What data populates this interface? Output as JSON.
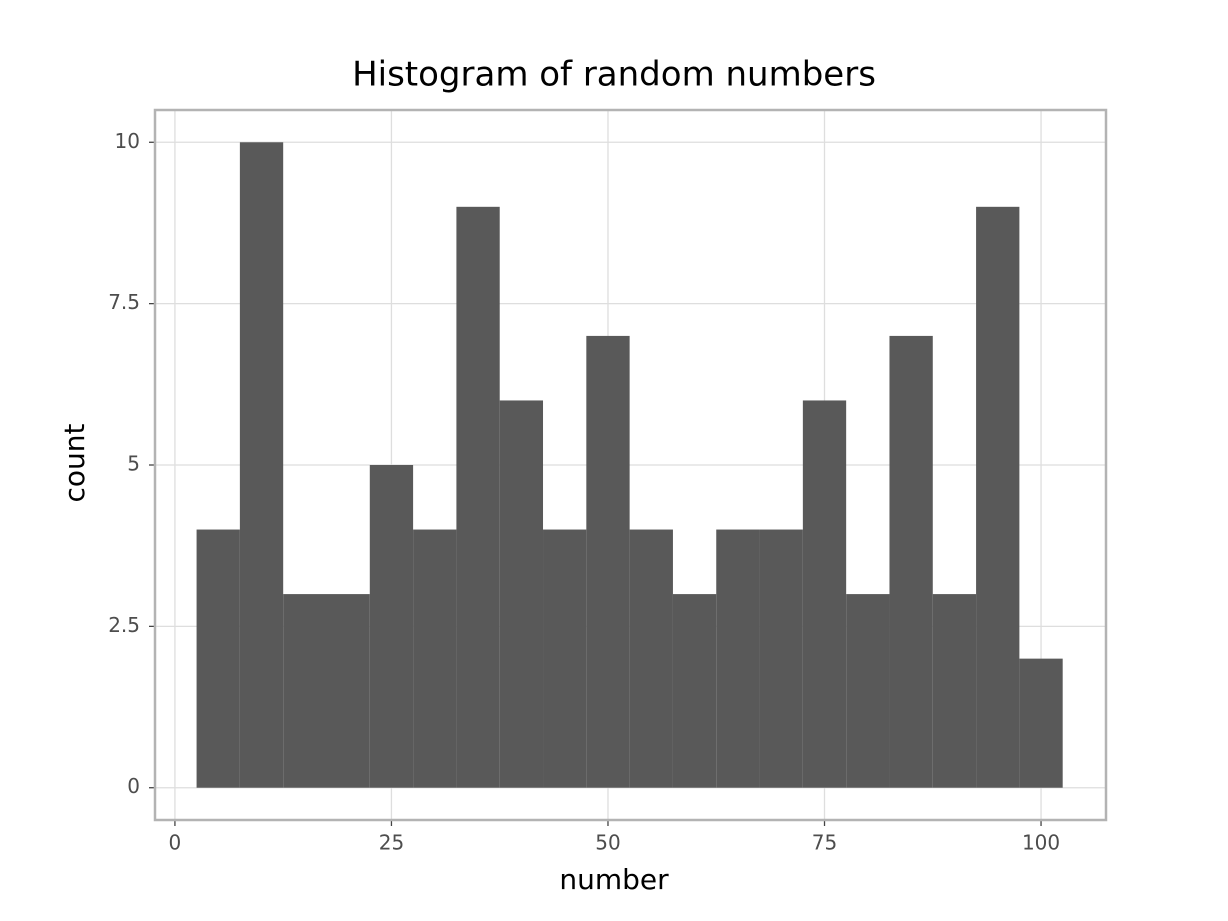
{
  "chart_data": {
    "type": "histogram",
    "title": "Histogram of random numbers",
    "x_label": "number",
    "y_label": "count",
    "bins": [
      2.5,
      7.5,
      12.5,
      17.5,
      22.5,
      27.5,
      32.5,
      37.5,
      42.5,
      47.5,
      52.5,
      57.5,
      62.5,
      67.5,
      72.5,
      77.5,
      82.5,
      87.5,
      92.5,
      97.5,
      102.5
    ],
    "values": [
      4,
      10,
      3,
      3,
      5,
      4,
      9,
      6,
      4,
      7,
      4,
      3,
      4,
      4,
      6,
      3,
      7,
      3,
      9,
      2
    ],
    "color": "#595959",
    "xlim": [
      -2.3,
      107.5
    ],
    "ylim": [
      -0.5,
      10.5
    ],
    "xticks": [
      0,
      25,
      50,
      75,
      100
    ],
    "yticks": [
      0,
      2.5,
      5,
      7.5,
      10
    ],
    "grid": true
  }
}
